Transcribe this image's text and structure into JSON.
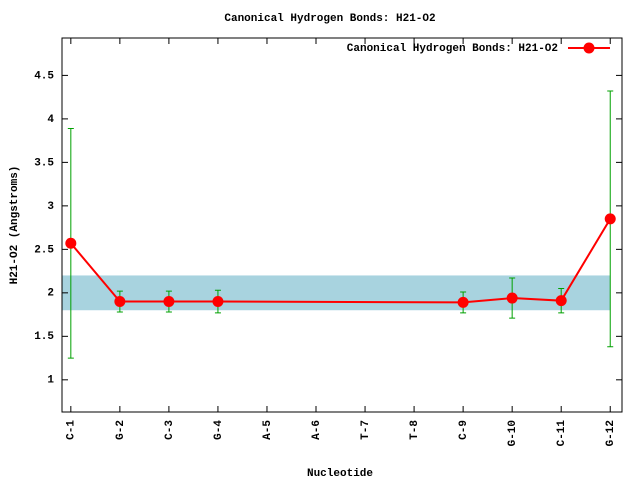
{
  "chart_data": {
    "type": "line",
    "title": "Canonical Hydrogen Bonds: H21-O2",
    "x_label": "Nucleotide",
    "y_label": "H21-O2 (Angstroms)",
    "x": [
      1,
      2,
      3,
      4,
      9,
      10,
      11,
      12
    ],
    "series": [
      {
        "name": "Canonical Hydrogen Bonds: H21-O2",
        "color": "#ff0000",
        "error_color": "#00a000",
        "values": [
          2.57,
          1.9,
          1.9,
          1.9,
          1.89,
          1.94,
          1.91,
          2.85
        ],
        "errors": [
          1.32,
          0.12,
          0.12,
          0.13,
          0.12,
          0.23,
          0.14,
          1.47
        ]
      }
    ],
    "band": {
      "ymin": 1.8,
      "ymax": 2.2,
      "color": "#a8d3df"
    },
    "xlim": [
      0.82,
      12.24
    ],
    "xticks": [
      {
        "value": 1,
        "label": "C-1"
      },
      {
        "value": 2,
        "label": "G-2"
      },
      {
        "value": 3,
        "label": "C-3"
      },
      {
        "value": 4,
        "label": "G-4"
      },
      {
        "value": 5,
        "label": "A-5"
      },
      {
        "value": 6,
        "label": "A-6"
      },
      {
        "value": 7,
        "label": "T-7"
      },
      {
        "value": 8,
        "label": "T-8"
      },
      {
        "value": 9,
        "label": "C-9"
      },
      {
        "value": 10,
        "label": "G-10"
      },
      {
        "value": 11,
        "label": "C-11"
      },
      {
        "value": 12,
        "label": "G-12"
      }
    ],
    "ylim": [
      0.63,
      4.93
    ],
    "yticks": [
      1,
      1.5,
      2,
      2.5,
      3,
      3.5,
      4,
      4.5
    ],
    "legend": "top-right"
  }
}
